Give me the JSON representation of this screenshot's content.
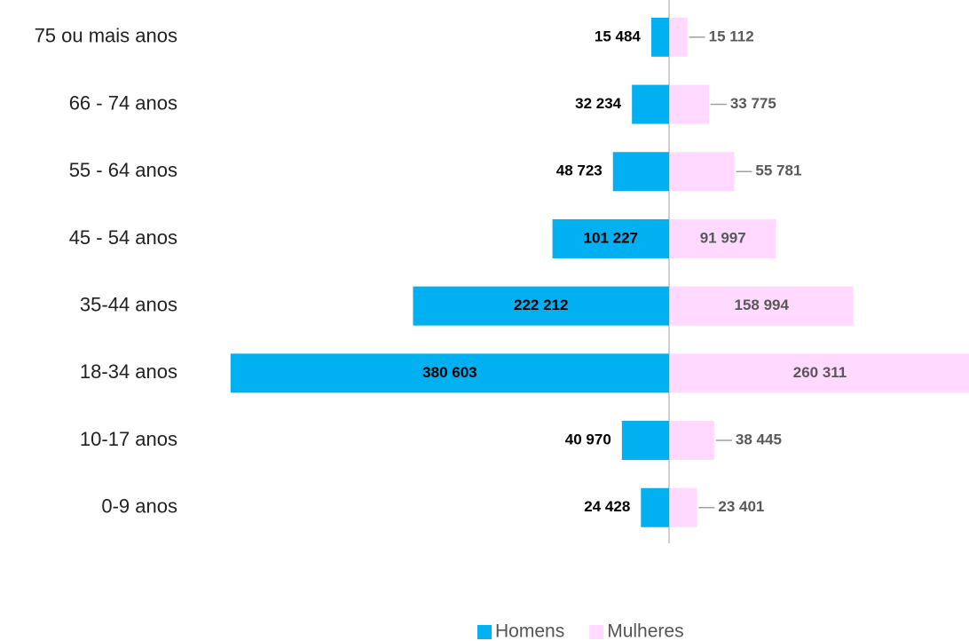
{
  "chart_data": {
    "type": "bar",
    "orientation": "horizontal-pyramid",
    "categories": [
      "75 ou mais anos",
      "66 - 74 anos",
      "55 - 64 anos",
      "45 - 54 anos",
      "35-44 anos",
      "18-34 anos",
      "10-17 anos",
      "0-9 anos"
    ],
    "series": [
      {
        "name": "Homens",
        "color": "#00b0f0",
        "label_color": "#000000",
        "side": "left",
        "values": [
          15484,
          32234,
          48723,
          101227,
          222212,
          380603,
          40970,
          24428
        ],
        "value_labels": [
          "15 484",
          "32 234",
          "48 723",
          "101 227",
          "222 212",
          "380 603",
          "40 970",
          "24 428"
        ]
      },
      {
        "name": "Mulheres",
        "color": "#ffd9ff",
        "label_color": "#595959",
        "side": "right",
        "values": [
          15112,
          33775,
          55781,
          91997,
          158994,
          260311,
          38445,
          23401
        ],
        "value_labels": [
          "15 112",
          "33 775",
          "55 781",
          "91 997",
          "158 994",
          "260 311",
          "38 445",
          "23 401"
        ]
      }
    ],
    "legend": "bottom"
  }
}
